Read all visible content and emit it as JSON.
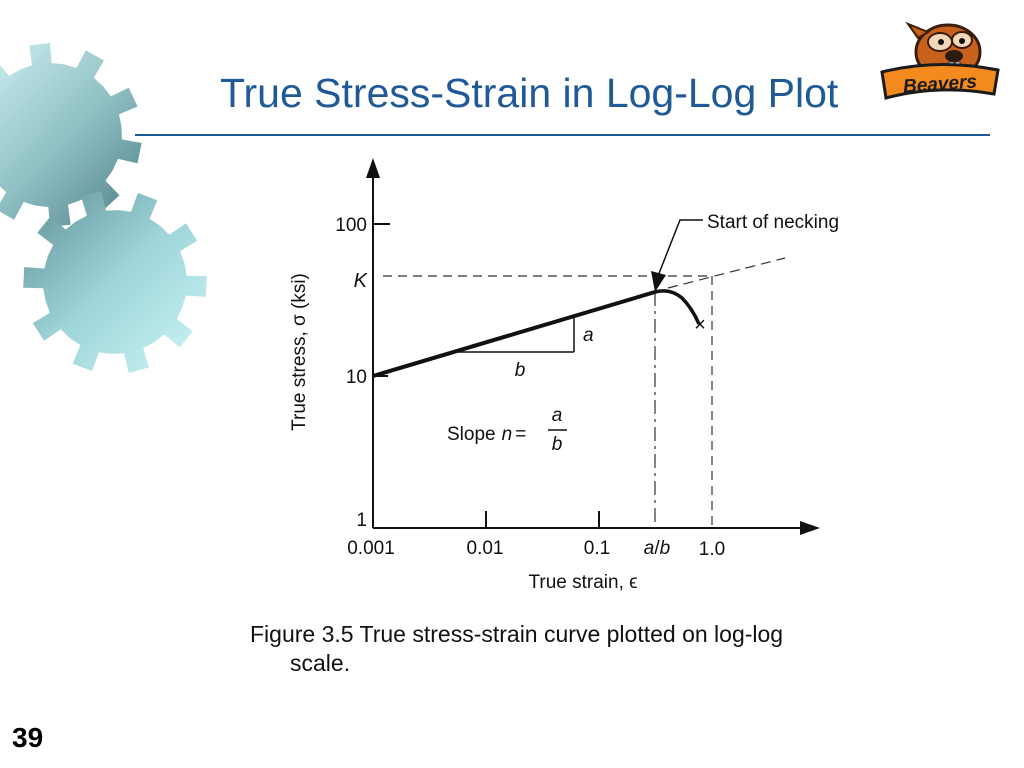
{
  "slide": {
    "title": "True Stress-Strain in Log-Log Plot",
    "number": "39",
    "caption_line1": "Figure 3.5  True stress-strain curve plotted on log-log",
    "caption_line2": "scale."
  },
  "logo": {
    "text": "Beavers",
    "icon": "beaver-mascot-icon"
  },
  "decoration": {
    "icon": "gears-icon",
    "colors": [
      "#bdeff2",
      "#5f8f96"
    ]
  },
  "colors": {
    "title": "#1f5a96",
    "rule": "#1f5a96"
  },
  "diagram": {
    "ylabel": "True stress, σ (ksi)",
    "xlabel": "True strain, ϵ",
    "y_ticks": [
      "100",
      "10",
      "1"
    ],
    "y_special": "K",
    "x_ticks": [
      "0.001",
      "0.01",
      "0.1",
      "1.0"
    ],
    "x_special_a": "a",
    "x_special_slash": "/",
    "x_special_b": "b",
    "annotation": "Start of necking",
    "triangle_a": "a",
    "triangle_b": "b",
    "slope_text": "Slope",
    "slope_n": "n",
    "slope_eq": "=",
    "slope_num": "a",
    "slope_den": "b",
    "fracture_mark": "×"
  }
}
